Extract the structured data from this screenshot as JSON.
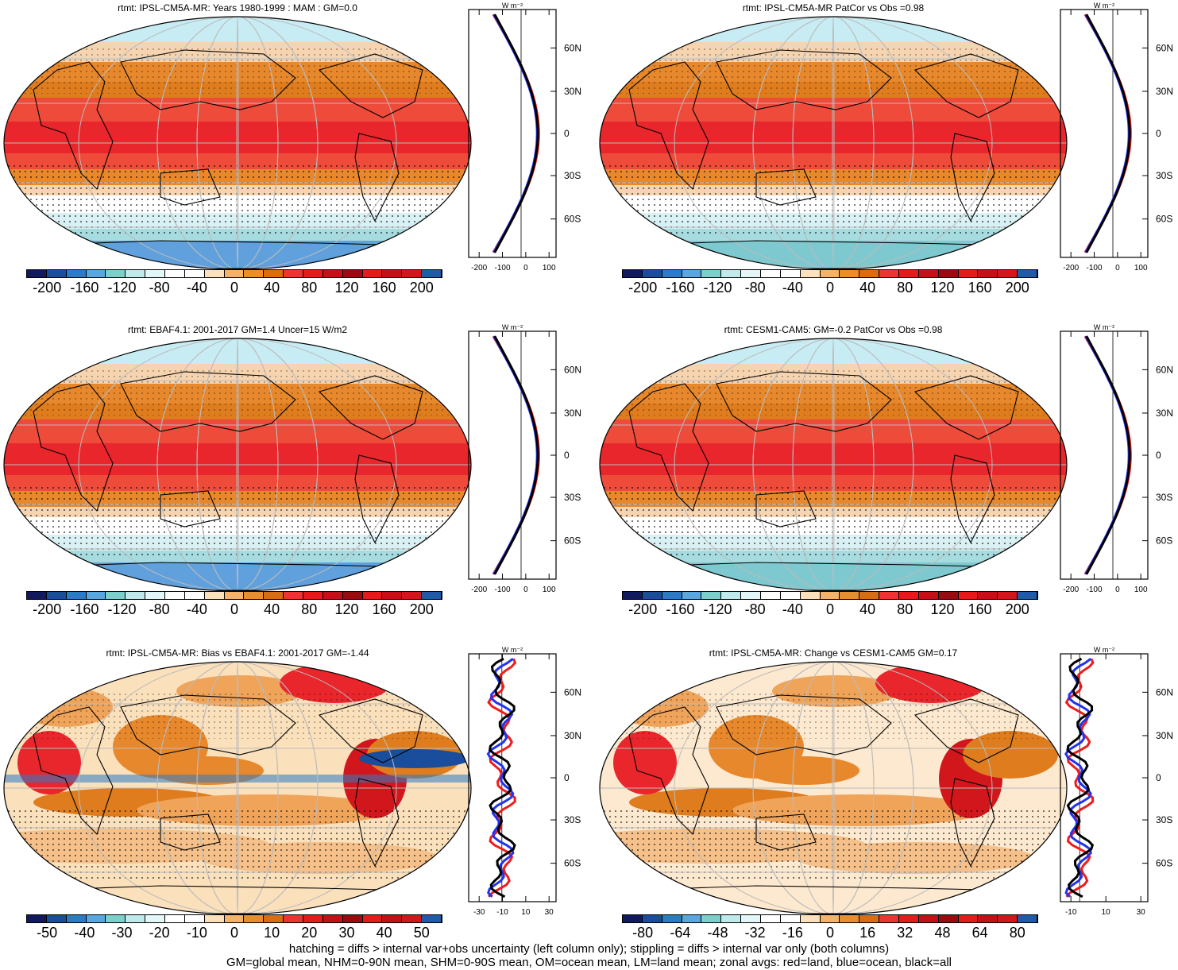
{
  "colors": {
    "ocean_low": "#c8ecf3",
    "band_orange": "#de7c1e",
    "band_lightorange": "#f5c08a",
    "band_red": "#e8262c",
    "band_cyan": "#a6dcdf",
    "band_blue": "#4a90d6",
    "coast": "#000000",
    "grid": "#bbbbbb",
    "zonal_land": "#ee1c1c",
    "zonal_ocean": "#2233ee",
    "zonal_all": "#000000"
  },
  "colorbar_palette": [
    "#121a5e",
    "#1a4d9c",
    "#2c7bc8",
    "#5aa7e0",
    "#7ccfca",
    "#bfe9ea",
    "#e3f6f8",
    "#ffffff",
    "#ffffff",
    "#fbe0bc",
    "#f5b26a",
    "#e98d2d",
    "#d96d12",
    "#ee3333",
    "#e51b1b",
    "#c41016",
    "#9a0a0e",
    "#e51b1b",
    "#c41016",
    "#d1171c",
    "#1f5ba6"
  ],
  "panels": [
    {
      "title": "rtmt: IPSL-CM5A-MR: Years 1980-1999 : MAM : GM=0.0",
      "colorbar_labels": [
        "-200",
        "-160",
        "-120",
        "-80",
        "-40",
        "0",
        "40",
        "80",
        "120",
        "160",
        "200"
      ],
      "zonal_x_ticks": [
        "-200",
        "-100",
        "0",
        "100"
      ],
      "zonal_y_ticks": [
        "60N",
        "30N",
        "0",
        "30S",
        "60S"
      ],
      "zonal_units": "W m⁻²",
      "type": "full"
    },
    {
      "title": "rtmt: IPSL-CM5A-MR PatCor vs Obs =0.98",
      "colorbar_labels": [
        "-200",
        "-160",
        "-120",
        "-80",
        "-40",
        "0",
        "40",
        "80",
        "120",
        "160",
        "200"
      ],
      "zonal_x_ticks": [
        "-200",
        "-100",
        "0",
        "100"
      ],
      "zonal_y_ticks": [
        "60N",
        "30N",
        "0",
        "30S",
        "60S"
      ],
      "zonal_units": "W m⁻²",
      "type": "full"
    },
    {
      "title": "rtmt: EBAF4.1: 2001-2017 GM=1.4 Uncer=15 W/m2",
      "colorbar_labels": [
        "-200",
        "-160",
        "-120",
        "-80",
        "-40",
        "0",
        "40",
        "80",
        "120",
        "160",
        "200"
      ],
      "zonal_x_ticks": [
        "-200",
        "-100",
        "0",
        "100"
      ],
      "zonal_y_ticks": [
        "60N",
        "30N",
        "0",
        "30S",
        "60S"
      ],
      "zonal_units": "W m⁻²",
      "type": "full"
    },
    {
      "title": "rtmt: CESM1-CAM5: GM=-0.2 PatCor vs Obs =0.98",
      "colorbar_labels": [
        "-200",
        "-160",
        "-120",
        "-80",
        "-40",
        "0",
        "40",
        "80",
        "120",
        "160",
        "200"
      ],
      "zonal_x_ticks": [
        "-200",
        "-100",
        "0",
        "100"
      ],
      "zonal_y_ticks": [
        "60N",
        "30N",
        "0",
        "30S",
        "60S"
      ],
      "zonal_units": "W m⁻²",
      "type": "full"
    },
    {
      "title": "rtmt: IPSL-CM5A-MR: Bias vs EBAF4.1: 2001-2017 GM=-1.44",
      "colorbar_labels": [
        "-50",
        "-40",
        "-30",
        "-20",
        "-10",
        "0",
        "10",
        "20",
        "30",
        "40",
        "50"
      ],
      "zonal_x_ticks": [
        "-30",
        "-10",
        "10",
        "30"
      ],
      "zonal_y_ticks": [
        "60N",
        "30N",
        "0",
        "30S",
        "60S"
      ],
      "zonal_units": "W m⁻²",
      "type": "diff"
    },
    {
      "title": "rtmt: IPSL-CM5A-MR: Change vs CESM1-CAM5 GM=0.17",
      "colorbar_labels": [
        "-80",
        "-64",
        "-48",
        "-32",
        "-16",
        "0",
        "16",
        "32",
        "48",
        "64",
        "80"
      ],
      "zonal_x_ticks": [
        "-10",
        "10",
        "30"
      ],
      "zonal_y_ticks": [
        "60N",
        "30N",
        "0",
        "30S",
        "60S"
      ],
      "zonal_units": "W m⁻²",
      "type": "change"
    }
  ],
  "footer": {
    "line1": "hatching = diffs > internal var+obs uncertainty (left column only); stippling = diffs > internal var only (both columns)",
    "line2": "GM=global mean, NHM=0-90N mean, SHM=0-90S mean, OM=ocean mean, LM=land mean; zonal avgs: red=land, blue=ocean, black=all"
  }
}
